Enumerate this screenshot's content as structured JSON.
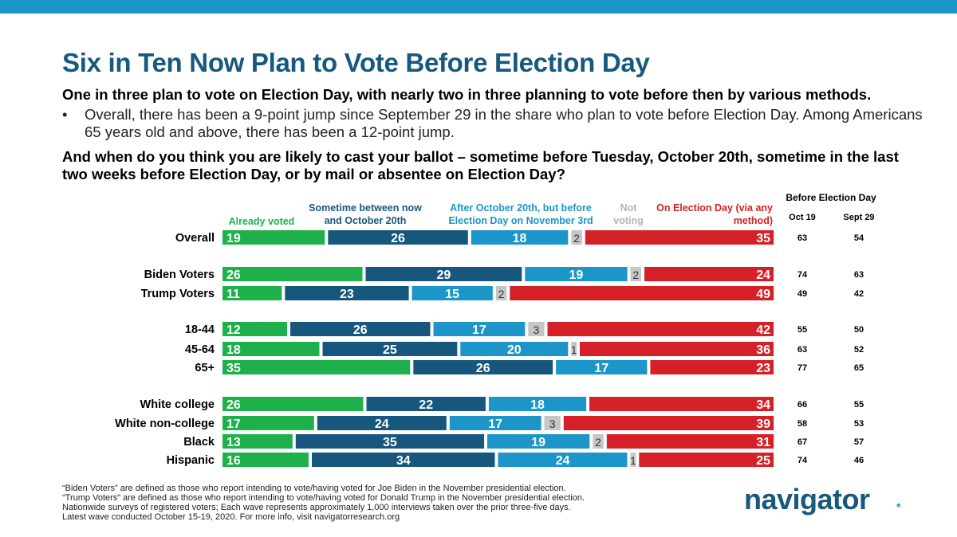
{
  "header": {
    "title": "Six in Ten Now Plan to Vote Before Election Day",
    "subtitle": "One in three plan to vote on Election Day, with nearly two in three planning to vote before then by various methods.",
    "bullet": "Overall, there has been a 9-point jump since September 29 in the share who plan to vote before Election Day. Among Americans 65 years old and above, there has been a 12-point jump.",
    "question": "And when do you think you are likely to cast your ballot – sometime before Tuesday, October 20th, sometime in the last two weeks before Election Day, or by mail or absentee on Election Day?"
  },
  "legend": {
    "already": "Already voted",
    "between_l1": "Sometime between now",
    "between_l2": "and October 20th",
    "after_l1": "After October 20th, but before",
    "after_l2": "Election Day on November 3rd",
    "not_l1": "Not",
    "not_l2": "voting",
    "eday_l1": "On Election Day (via any",
    "eday_l2": "method)"
  },
  "side_table": {
    "header": "Before Election Day",
    "col1": "Oct 19",
    "col2": "Sept 29"
  },
  "colors": {
    "already": "#1eb14b",
    "between": "#17577e",
    "after": "#1c95c9",
    "not_voting": "#c6c6c6",
    "eday": "#d62027",
    "title": "#16587e"
  },
  "chart_data": {
    "type": "bar",
    "stacked": true,
    "orientation": "horizontal",
    "categories": [
      "Overall",
      "Biden Voters",
      "Trump Voters",
      "18-44",
      "45-64",
      "65+",
      "White college",
      "White non-college",
      "Black",
      "Hispanic"
    ],
    "series": [
      {
        "name": "Already voted",
        "values": [
          19,
          26,
          11,
          12,
          18,
          35,
          26,
          17,
          13,
          16
        ]
      },
      {
        "name": "Sometime between now and October 20th",
        "values": [
          26,
          29,
          23,
          26,
          25,
          26,
          22,
          24,
          35,
          34
        ]
      },
      {
        "name": "After October 20th, but before Election Day on November 3rd",
        "values": [
          18,
          19,
          15,
          17,
          20,
          17,
          18,
          17,
          19,
          24
        ]
      },
      {
        "name": "Not voting",
        "values": [
          2,
          2,
          2,
          3,
          1,
          null,
          null,
          3,
          2,
          1
        ]
      },
      {
        "name": "On Election Day (via any method)",
        "values": [
          35,
          24,
          49,
          42,
          36,
          23,
          34,
          39,
          31,
          25
        ]
      }
    ],
    "before_election_day": {
      "Oct 19": [
        63,
        74,
        49,
        55,
        63,
        77,
        66,
        58,
        67,
        74
      ],
      "Sept 29": [
        54,
        63,
        42,
        50,
        52,
        65,
        55,
        53,
        57,
        46
      ]
    },
    "xlim": [
      0,
      100
    ],
    "legend_position": "top"
  },
  "footnotes": [
    "“Biden Voters” are defined as those who report intending to vote/having voted for Joe Biden in the November presidential election.",
    "“Trump Voters” are defined as those who report intending to vote/having voted for Donald Trump in the November presidential election.",
    "Nationwide surveys of registered voters; Each wave represents approximately 1,000 interviews taken over the prior three-five days.",
    "Latest wave conducted October 15-19, 2020. For more info, visit navigatorresearch.org"
  ],
  "logo": {
    "text": "navigator",
    "mark": "*"
  }
}
